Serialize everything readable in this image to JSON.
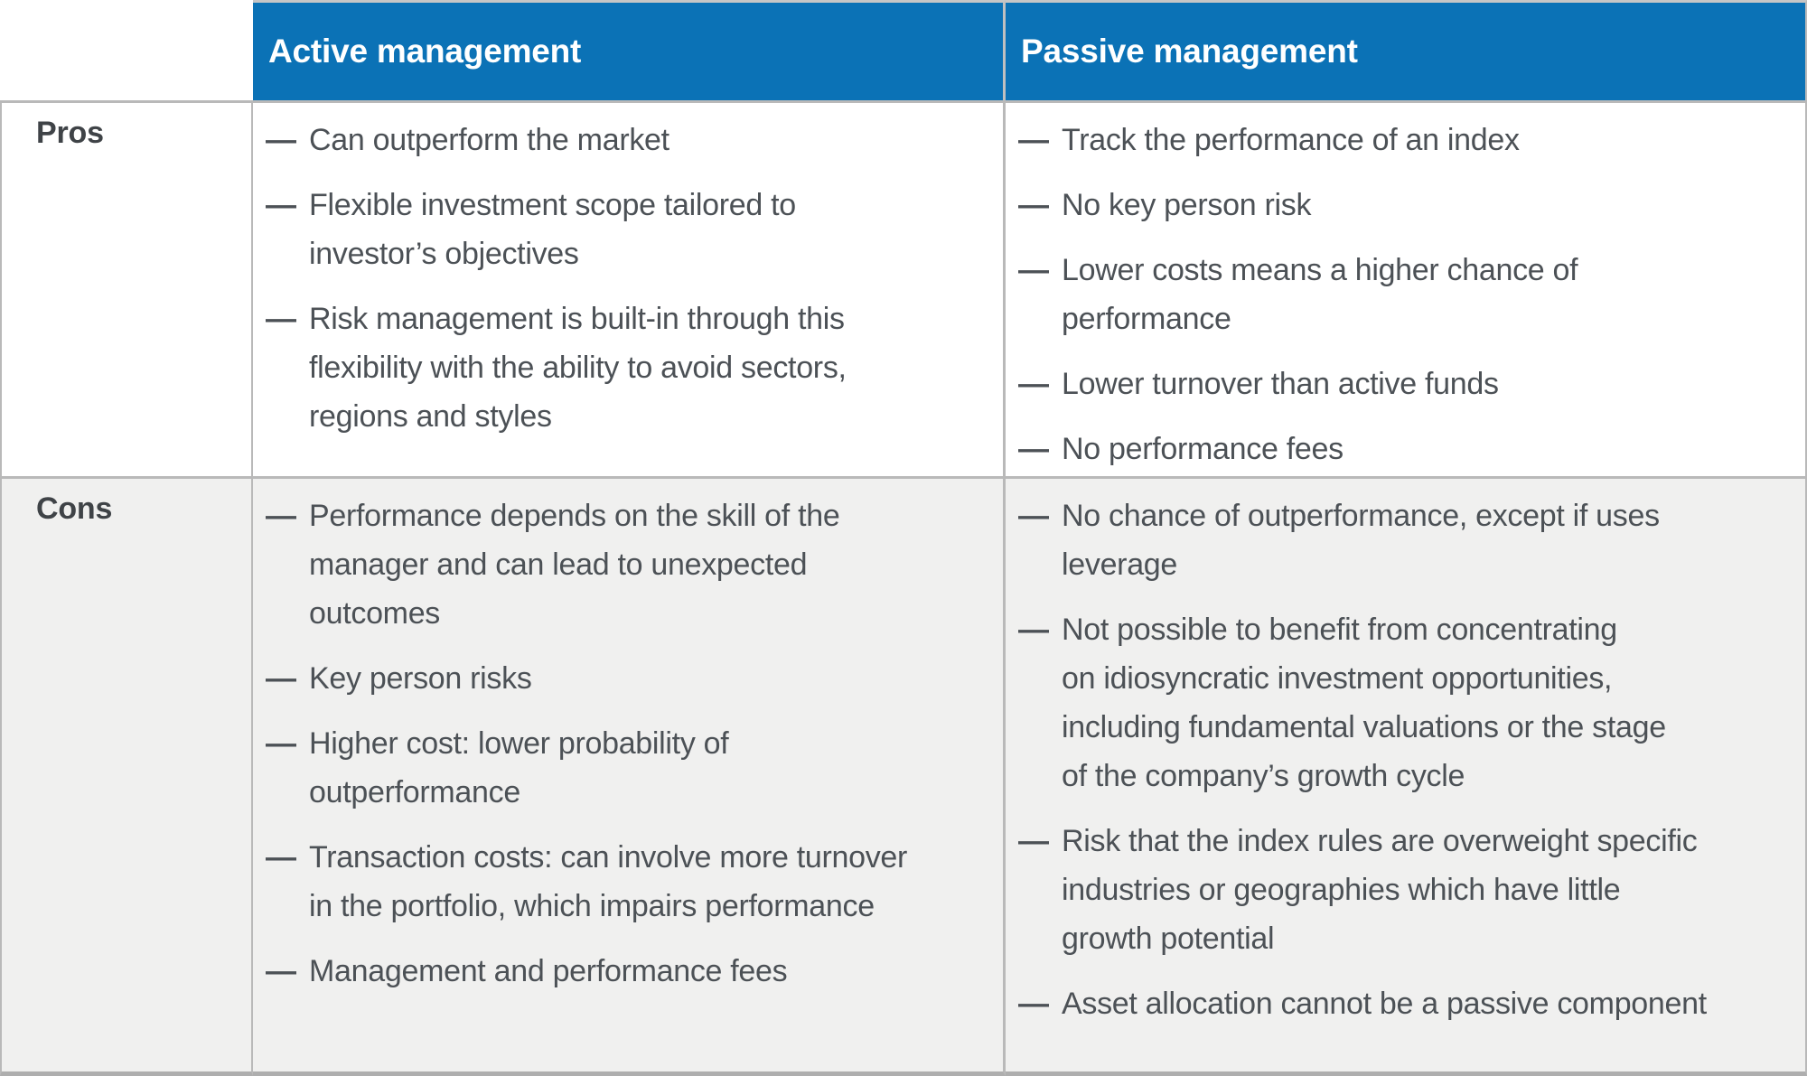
{
  "table": {
    "column_headers": [
      "Active management",
      "Passive management"
    ],
    "rows": [
      {
        "label": "Pros",
        "active_items": [
          "Can outperform the market",
          "Flexible investment scope tailored to\ninvestor’s objectives",
          "Risk management is built-in through this\nflexibility with the ability to avoid sectors,\nregions and styles"
        ],
        "passive_items": [
          "Track the performance of an index",
          "No key person risk",
          "Lower costs means a higher chance of\nperformance",
          "Lower turnover than active funds",
          "No performance fees"
        ]
      },
      {
        "label": "Cons",
        "active_items": [
          "Performance depends on the skill of the\nmanager and can lead to unexpected\noutcomes",
          "Key person risks",
          "Higher cost: lower probability of\noutperformance",
          "Transaction costs: can involve more turnover\nin the portfolio, which impairs performance",
          "Management and performance fees"
        ],
        "passive_items": [
          "No chance of outperformance, except if uses\nleverage",
          "Not possible to benefit from concentrating\non idiosyncratic investment opportunities,\nincluding fundamental valuations or the stage\nof the company’s growth cycle",
          "Risk that the index rules are overweight specific\nindustries or geographies which have little\ngrowth potential",
          "Asset allocation cannot be a passive component"
        ]
      }
    ]
  },
  "bullet_glyph": "—",
  "colors": {
    "header_bg": "#0b72b6",
    "header_text": "#ffffff",
    "body_text": "#4c5156",
    "cons_row_bg": "#f0f0ef",
    "border": "#b9b9b9"
  }
}
